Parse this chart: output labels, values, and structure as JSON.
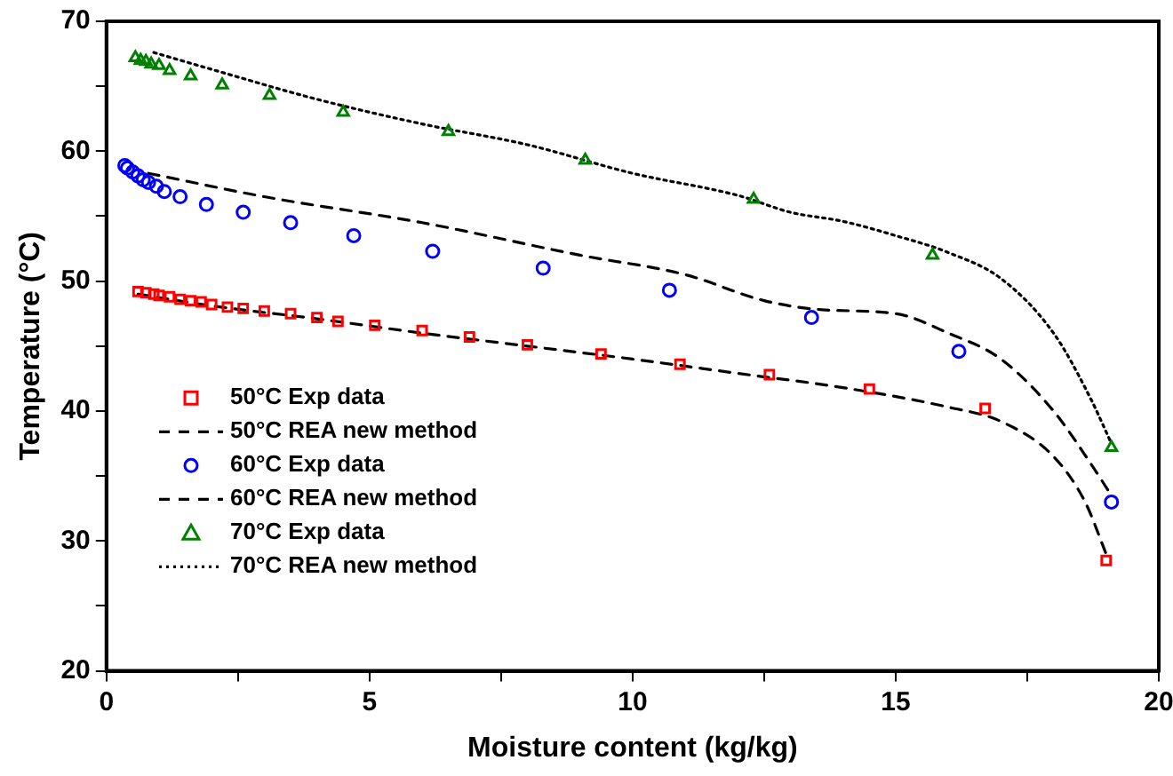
{
  "chart_data": {
    "type": "scatter",
    "xlabel": "Moisture content (kg/kg)",
    "ylabel": "Temperature (°C)",
    "xlim": [
      0,
      20
    ],
    "ylim": [
      20,
      70
    ],
    "xticks": [
      0,
      5,
      10,
      15,
      20
    ],
    "yticks": [
      20,
      30,
      40,
      50,
      60,
      70
    ],
    "grid": false,
    "legend": "bottom left",
    "series": [
      {
        "name": "50°C Exp data",
        "marker": "square",
        "color": "#ff0000",
        "x": [
          0.6,
          0.75,
          0.9,
          1.0,
          1.2,
          1.4,
          1.6,
          1.8,
          2.0,
          2.3,
          2.6,
          3.0,
          3.5,
          4.0,
          4.4,
          5.1,
          6.0,
          6.9,
          8.0,
          9.4,
          10.9,
          12.6,
          14.5,
          16.7,
          19.0
        ],
        "values": [
          49.2,
          49.1,
          49.0,
          48.9,
          48.8,
          48.6,
          48.5,
          48.4,
          48.2,
          48.0,
          47.9,
          47.7,
          47.5,
          47.2,
          46.9,
          46.6,
          46.2,
          45.7,
          45.1,
          44.4,
          43.6,
          42.8,
          41.7,
          40.2,
          28.5
        ]
      },
      {
        "name": "50°C REA new method",
        "type": "line",
        "marker": "none",
        "line_style": "dashed",
        "color": "#000000",
        "x": [
          0.6,
          2,
          4,
          6,
          8,
          10,
          12,
          14,
          16,
          17,
          18,
          18.6,
          19.0
        ],
        "values": [
          49.0,
          48.1,
          47.1,
          46.0,
          45.0,
          44.0,
          42.9,
          41.8,
          40.3,
          39.2,
          36.5,
          33,
          29
        ]
      },
      {
        "name": "60°C Exp data",
        "marker": "circle",
        "color": "#0000ff",
        "x": [
          0.35,
          0.4,
          0.5,
          0.6,
          0.7,
          0.8,
          0.95,
          1.1,
          1.4,
          1.9,
          2.6,
          3.5,
          4.7,
          6.2,
          8.3,
          10.7,
          13.4,
          16.2,
          19.1
        ],
        "values": [
          58.9,
          58.7,
          58.4,
          58.1,
          57.8,
          57.6,
          57.3,
          56.9,
          56.5,
          55.9,
          55.3,
          54.5,
          53.5,
          52.3,
          51.0,
          49.3,
          47.2,
          44.6,
          33.0
        ]
      },
      {
        "name": "60°C REA new method",
        "type": "line",
        "marker": "none",
        "line_style": "dashed",
        "color": "#000000",
        "x": [
          0.8,
          3,
          6,
          9,
          11,
          12.5,
          13.6,
          15,
          16,
          17,
          18,
          18.7,
          19.1
        ],
        "values": [
          58.3,
          56.5,
          54.5,
          52,
          50.5,
          48.5,
          47.8,
          47.5,
          46,
          44,
          40,
          36,
          33.5
        ]
      },
      {
        "name": "70°C Exp data",
        "marker": "triangle",
        "color": "#008000",
        "x": [
          0.55,
          0.65,
          0.75,
          0.85,
          1.0,
          1.2,
          1.6,
          2.2,
          3.1,
          4.5,
          6.5,
          9.1,
          12.3,
          15.7,
          19.1
        ],
        "values": [
          67.2,
          67.0,
          66.9,
          66.7,
          66.6,
          66.2,
          65.8,
          65.1,
          64.3,
          63.0,
          61.5,
          59.3,
          56.3,
          52.0,
          37.2
        ]
      },
      {
        "name": "70°C REA new method",
        "type": "line",
        "marker": "none",
        "line_style": "dotted",
        "color": "#000000",
        "x": [
          0.9,
          2,
          4,
          6,
          8,
          10,
          12,
          13,
          14,
          15,
          16,
          17,
          18,
          18.7,
          19.1
        ],
        "values": [
          67.6,
          66.3,
          64.0,
          62.1,
          60.5,
          58.3,
          56.6,
          55.3,
          54.6,
          53.5,
          52.2,
          50.2,
          46,
          41,
          37.5
        ]
      }
    ]
  }
}
